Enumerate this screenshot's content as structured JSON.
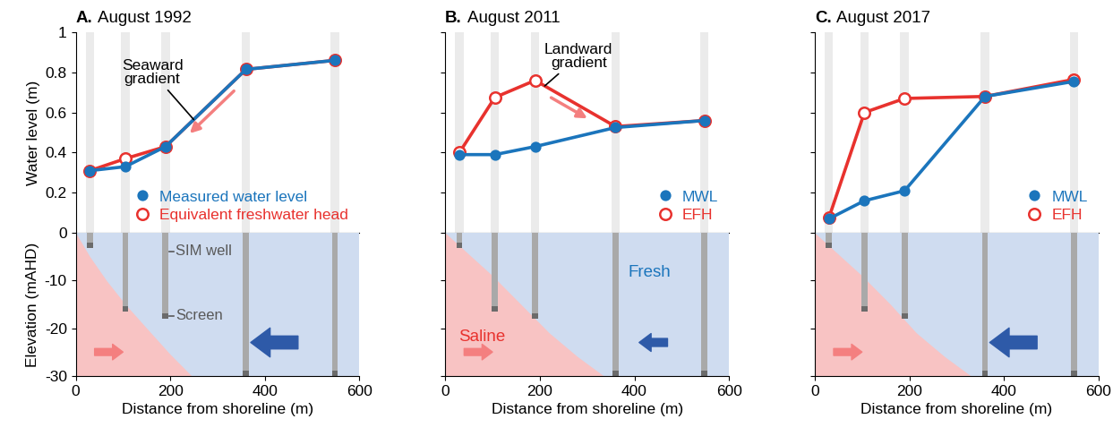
{
  "chart_data": [
    {
      "type": "line",
      "title": "A. August 1992",
      "ylabel": "Water level (m)",
      "x": [
        30,
        105,
        190,
        360,
        548
      ],
      "series": [
        {
          "name": "Measured water level",
          "color": "#1b75bc",
          "marker": "filled",
          "values": [
            0.31,
            0.33,
            0.43,
            0.815,
            0.86
          ],
          "annotation": "Seaward\ngradient"
        },
        {
          "name": "Equivalent freshwater head",
          "color": "#e8322e",
          "marker": "hollow",
          "values": [
            0.31,
            0.37,
            0.43,
            0.815,
            0.86
          ]
        }
      ],
      "xlim": [
        0,
        600
      ],
      "xticks": [
        0,
        200,
        400,
        600
      ],
      "ylim": [
        0,
        1
      ],
      "yticks": [
        0.2,
        0.4,
        0.6,
        0.8,
        1
      ],
      "legend": "lower right",
      "tick_labels": "y"
    },
    {
      "type": "line",
      "title": "B. August 2011",
      "x": [
        30,
        105,
        190,
        360,
        548
      ],
      "series": [
        {
          "name": "MWL",
          "color": "#1b75bc",
          "marker": "filled",
          "values": [
            0.39,
            0.39,
            0.43,
            0.525,
            0.56
          ]
        },
        {
          "name": "EFH",
          "color": "#e8322e",
          "marker": "hollow",
          "values": [
            0.4,
            0.675,
            0.76,
            0.53,
            0.56
          ],
          "annotation": "Landward\ngradient"
        }
      ],
      "xlim": [
        0,
        600
      ],
      "xticks": [
        0,
        200,
        400,
        600
      ],
      "ylim": [
        0,
        1
      ],
      "yticks": [
        0.2,
        0.4,
        0.6,
        0.8,
        1
      ],
      "legend": "lower right",
      "tick_labels": false
    },
    {
      "type": "line",
      "title": "C. August 2017",
      "x": [
        30,
        105,
        190,
        360,
        548
      ],
      "series": [
        {
          "name": "MWL",
          "color": "#1b75bc",
          "marker": "filled",
          "values": [
            0.07,
            0.16,
            0.21,
            0.68,
            0.755
          ]
        },
        {
          "name": "EFH",
          "color": "#e8322e",
          "marker": "hollow",
          "values": [
            0.075,
            0.6,
            0.67,
            0.68,
            0.765
          ]
        }
      ],
      "xlim": [
        0,
        600
      ],
      "xticks": [
        0,
        200,
        400,
        600
      ],
      "ylim": [
        0,
        1
      ],
      "yticks": [
        0.2,
        0.4,
        0.6,
        0.8,
        1
      ],
      "legend": "lower right",
      "tick_labels": false
    },
    {
      "type": "area",
      "xlabel": "Distance from shoreline (m)",
      "ylabel": "Elevation (mAHD)",
      "x": [
        0,
        30,
        65,
        105,
        150,
        200,
        245
      ],
      "values": [
        0,
        -5,
        -10,
        -15,
        -20,
        -25.5,
        -30
      ],
      "color": "#f8c3c3",
      "wells": {
        "x": [
          30,
          105,
          190,
          360,
          548
        ],
        "screen": [
          -2,
          -15.3,
          -16.8,
          -29,
          -29
        ]
      },
      "annotations": [
        "SIM well",
        "Screen"
      ],
      "xlim": [
        0,
        600
      ],
      "xticks": [
        0,
        200,
        400,
        600
      ],
      "ylim": [
        -30,
        0
      ],
      "yticks": [
        -30,
        -20,
        -10,
        0
      ],
      "tick_labels": true
    },
    {
      "type": "area",
      "xlabel": "Distance from shoreline (m)",
      "x": [
        0,
        50,
        100,
        160,
        220,
        280,
        335
      ],
      "values": [
        0,
        -4.5,
        -9,
        -15,
        -21,
        -26,
        -30
      ],
      "color": "#f8c3c3",
      "wells": {
        "x": [
          30,
          105,
          190,
          360,
          548
        ],
        "screen": [
          -2,
          -15.3,
          -16.8,
          -29,
          -29
        ]
      },
      "annotations": [
        "Fresh",
        "Saline"
      ],
      "xlim": [
        0,
        600
      ],
      "xticks": [
        0,
        200,
        400,
        600
      ],
      "ylim": [
        -30,
        0
      ],
      "yticks": [
        -30,
        -20,
        -10,
        0
      ],
      "tick_labels": "x"
    },
    {
      "type": "area",
      "xlabel": "Distance from shoreline (m)",
      "x": [
        0,
        50,
        100,
        160,
        215,
        275,
        330
      ],
      "values": [
        0,
        -4.5,
        -9,
        -15,
        -21,
        -26,
        -30
      ],
      "color": "#f8c3c3",
      "wells": {
        "x": [
          30,
          105,
          190,
          360,
          548
        ],
        "screen": [
          -2,
          -15.3,
          -16.8,
          -29,
          -29
        ]
      },
      "xlim": [
        0,
        600
      ],
      "xticks": [
        0,
        200,
        400,
        600
      ],
      "ylim": [
        -30,
        0
      ],
      "yticks": [
        -30,
        -20,
        -10,
        0
      ],
      "tick_labels": "x"
    }
  ]
}
